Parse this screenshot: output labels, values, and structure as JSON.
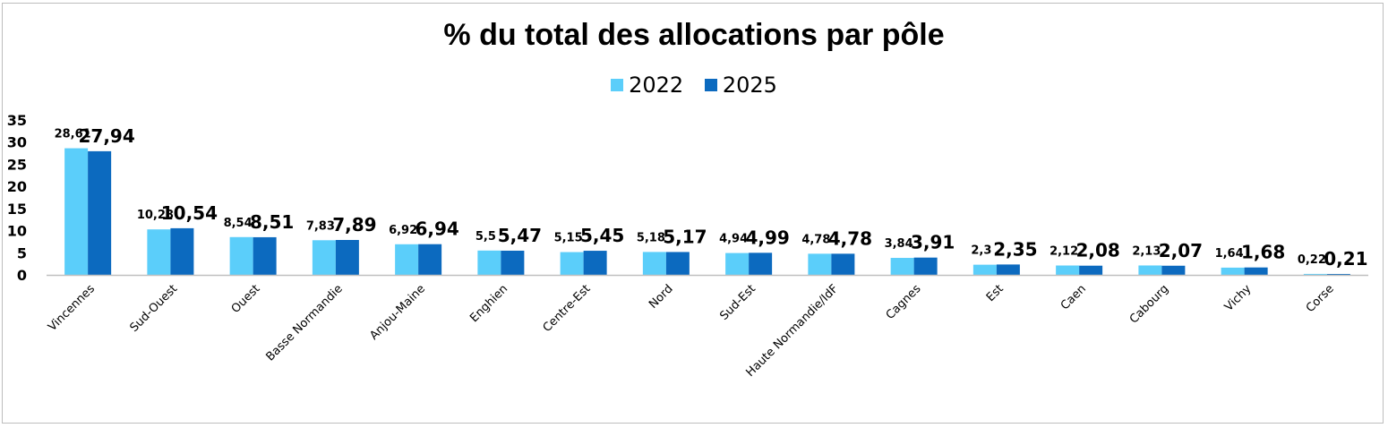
{
  "chart_data": {
    "type": "bar",
    "title": "% du total des allocations par pôle",
    "xlabel": "",
    "ylabel": "",
    "ylim": [
      0,
      35
    ],
    "yticks": [
      "0",
      "5",
      "10",
      "15",
      "20",
      "25",
      "30",
      "35"
    ],
    "grid": false,
    "legend_position": "top-center",
    "categories": [
      "Vincennes",
      "Sud-Ouest",
      "Ouest",
      "Basse Normandie",
      "Anjou-Maine",
      "Enghien",
      "Centre-Est",
      "Nord",
      "Sud-Est",
      "Haute  Normandie/IdF",
      "Cagnes",
      "Est",
      "Caen",
      "Cabourg",
      "Vichy",
      "Corse"
    ],
    "series": [
      {
        "name": "2022",
        "color": "#5bcefa",
        "values": [
          28.61,
          10.28,
          8.54,
          7.83,
          6.92,
          5.5,
          5.15,
          5.18,
          4.94,
          4.78,
          3.84,
          2.3,
          2.12,
          2.13,
          1.64,
          0.22
        ],
        "labels": [
          "28,61",
          "10,28",
          "8,54",
          "7,83",
          "6,92",
          "5,5",
          "5,15",
          "5,18",
          "4,94",
          "4,78",
          "3,84",
          "2,3",
          "2,12",
          "2,13",
          "1,64",
          "0,22"
        ]
      },
      {
        "name": "2025",
        "color": "#0c6abf",
        "values": [
          27.94,
          10.54,
          8.51,
          7.89,
          6.94,
          5.47,
          5.45,
          5.17,
          4.99,
          4.78,
          3.91,
          2.35,
          2.08,
          2.07,
          1.68,
          0.21
        ],
        "labels": [
          "27,94",
          "10,54",
          "8,51",
          "7,89",
          "6,94",
          "5,47",
          "5,45",
          "5,17",
          "4,99",
          "4,78",
          "3,91",
          "2,35",
          "2,08",
          "2,07",
          "1,68",
          "0,21"
        ]
      }
    ]
  }
}
